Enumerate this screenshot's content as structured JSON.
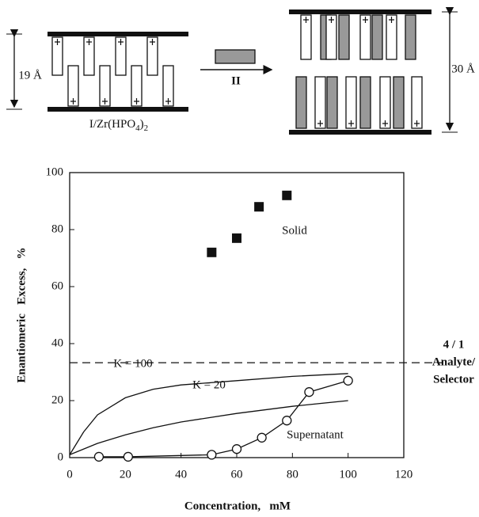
{
  "diagram": {
    "left_height": "19 Å",
    "reagent": "II",
    "right_height": "30 Å",
    "host_label": {
      "main": "I/Zr(HPO",
      "sub1": "4",
      "close": ")",
      "sub2": "2"
    }
  },
  "chart_data": {
    "type": "scatter",
    "x_label": "Concentration,   mM",
    "y_label": "Enantiomeric   Excess,   %",
    "xlim": [
      0,
      120
    ],
    "xticks": [
      0,
      20,
      40,
      60,
      80,
      100,
      120
    ],
    "ylim": [
      0,
      100
    ],
    "yticks": [
      0,
      20,
      40,
      60,
      80,
      100
    ],
    "reference_line": {
      "value": 33.3,
      "label": [
        "4 / 1",
        "Analyte/",
        "Selector"
      ]
    },
    "series": [
      {
        "name": "Solid",
        "marker": "square",
        "color": "#111111",
        "x": [
          51,
          60,
          68,
          78
        ],
        "values": [
          72,
          77,
          88,
          92
        ]
      },
      {
        "name": "Supernatant",
        "marker": "circle",
        "color": "#111111",
        "x": [
          10.5,
          21,
          51,
          60,
          69,
          78,
          86,
          100
        ],
        "values": [
          0.3,
          0.3,
          1,
          3,
          7,
          13,
          23,
          27
        ]
      },
      {
        "name": "K = 100",
        "marker": "none",
        "color": "#111111",
        "x": [
          0,
          5,
          10,
          20,
          30,
          40,
          60,
          80,
          100
        ],
        "values": [
          1,
          9,
          15,
          21,
          24,
          25.5,
          27,
          28.5,
          29.5
        ]
      },
      {
        "name": "K = 20",
        "marker": "none",
        "color": "#111111",
        "x": [
          0,
          10,
          20,
          30,
          40,
          60,
          80,
          100
        ],
        "values": [
          1,
          5,
          8,
          10.5,
          12.5,
          15.5,
          18,
          20
        ]
      }
    ]
  }
}
